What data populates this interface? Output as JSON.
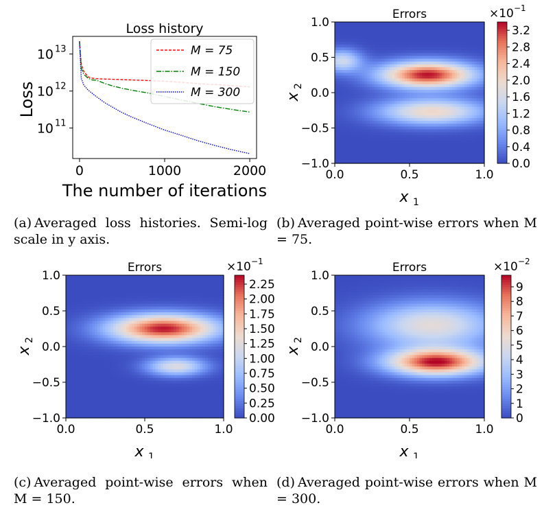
{
  "colors": {
    "series": [
      "#ff0000",
      "#008000",
      "#0000ff"
    ],
    "colormap": [
      "#3b4cc0",
      "#6889ee",
      "#9abbff",
      "#c9d7f0",
      "#eddbd0",
      "#f7b89c",
      "#e7745b",
      "#b40426"
    ]
  },
  "captions": [
    {
      "label": "(a)",
      "text": "Averaged loss histories. Semi-log scale in y axis."
    },
    {
      "label": "(b)",
      "text": "Averaged point-wise errors when M = 75."
    },
    {
      "label": "(c)",
      "text": "Averaged point-wise errors when M = 150."
    },
    {
      "label": "(d)",
      "text": "Averaged point-wise errors when M = 300."
    }
  ],
  "chart_data": [
    {
      "type": "line",
      "title": "Loss history",
      "xlabel": "The number of iterations",
      "ylabel": "Loss",
      "yscale": "log",
      "xlim": [
        -80,
        2080
      ],
      "ylim": [
        15000000000.0,
        30000000000000.0
      ],
      "xticks": [
        "0",
        "1000",
        "2000"
      ],
      "yticks": [
        "10",
        "10",
        "10"
      ],
      "yticks_exp": [
        "13",
        "12",
        "11"
      ],
      "legend_position": "top-right",
      "x": [
        0,
        20,
        50,
        100,
        150,
        200,
        300,
        400,
        500,
        600,
        800,
        1000,
        1200,
        1400,
        1600,
        1800,
        2000
      ],
      "series": [
        {
          "name": "M = 75",
          "legend": "M = 75",
          "style": "dashed",
          "values": [
            22000000000000.0,
            5500000000000.0,
            3600000000000.0,
            2600000000000.0,
            2400000000000.0,
            2300000000000.0,
            2200000000000.0,
            2100000000000.0,
            2000000000000.0,
            1900000000000.0,
            1800000000000.0,
            1700000000000.0,
            1600000000000.0,
            1500000000000.0,
            1450000000000.0,
            1400000000000.0,
            1350000000000.0
          ]
        },
        {
          "name": "M = 150",
          "legend": "M = 150",
          "style": "dashdot",
          "values": [
            22000000000000.0,
            4500000000000.0,
            3000000000000.0,
            2300000000000.0,
            2000000000000.0,
            1900000000000.0,
            1500000000000.0,
            1250000000000.0,
            1100000000000.0,
            1000000000000.0,
            850000000000.0,
            700000000000.0,
            580000000000.0,
            480000000000.0,
            400000000000.0,
            340000000000.0,
            290000000000.0
          ]
        },
        {
          "name": "M = 300",
          "legend": "M = 300",
          "style": "dotted",
          "values": [
            22000000000000.0,
            2200000000000.0,
            1400000000000.0,
            1000000000000.0,
            800000000000.0,
            650000000000.0,
            450000000000.0,
            340000000000.0,
            260000000000.0,
            210000000000.0,
            140000000000.0,
            95000000000.0,
            68000000000.0,
            48000000000.0,
            35000000000.0,
            26000000000.0,
            20000000000.0
          ]
        }
      ]
    },
    {
      "type": "heatmap",
      "title": "Errors",
      "xlabel": "x",
      "xlabel_sub": "1",
      "ylabel": "x",
      "ylabel_sub": "2",
      "xlim": [
        0,
        1
      ],
      "ylim": [
        -1,
        1
      ],
      "xticks": [
        "0.0",
        "0.5",
        "1.0"
      ],
      "yticks": [
        "1.0",
        "0.5",
        "0.0",
        "−0.5",
        "−1.0"
      ],
      "scale_label": "×10",
      "scale_exp": "−1",
      "vmin": 0,
      "vmax": 3.4,
      "colorbar_ticks": [
        "0.0",
        "0.4",
        "0.8",
        "1.2",
        "1.6",
        "2.0",
        "2.4",
        "2.8",
        "3.2"
      ],
      "colorbar_values": [
        0.0,
        0.4,
        0.8,
        1.2,
        1.6,
        2.0,
        2.4,
        2.8,
        3.2
      ],
      "blobs": [
        {
          "x": 0.62,
          "y": 0.25,
          "sx": 0.22,
          "sy": 0.13,
          "amp": 3.35
        },
        {
          "x": 0.05,
          "y": 0.45,
          "sx": 0.09,
          "sy": 0.11,
          "amp": 1.5
        },
        {
          "x": 0.65,
          "y": -0.27,
          "sx": 0.25,
          "sy": 0.13,
          "amp": 2.0
        }
      ]
    },
    {
      "type": "heatmap",
      "title": "Errors",
      "xlabel": "x",
      "xlabel_sub": "1",
      "ylabel": "x",
      "ylabel_sub": "2",
      "xlim": [
        0,
        1
      ],
      "ylim": [
        -1,
        1
      ],
      "xticks": [
        "0.0",
        "0.5",
        "1.0"
      ],
      "yticks": [
        "1.0",
        "0.5",
        "0.0",
        "−0.5",
        "−1.0"
      ],
      "scale_label": "×10",
      "scale_exp": "−1",
      "vmin": 0,
      "vmax": 2.4,
      "colorbar_ticks": [
        "0.00",
        "0.25",
        "0.50",
        "0.75",
        "1.00",
        "1.25",
        "1.50",
        "1.75",
        "2.00",
        "2.25"
      ],
      "colorbar_values": [
        0.0,
        0.25,
        0.5,
        0.75,
        1.0,
        1.25,
        1.5,
        1.75,
        2.0,
        2.25
      ],
      "blobs": [
        {
          "x": 0.62,
          "y": 0.25,
          "sx": 0.24,
          "sy": 0.14,
          "amp": 2.35
        },
        {
          "x": 0.7,
          "y": -0.28,
          "sx": 0.13,
          "sy": 0.09,
          "amp": 1.2
        }
      ]
    },
    {
      "type": "heatmap",
      "title": "Errors",
      "xlabel": "x",
      "xlabel_sub": "1",
      "ylabel": "x",
      "ylabel_sub": "2",
      "xlim": [
        0,
        1
      ],
      "ylim": [
        -1,
        1
      ],
      "xticks": [
        "0.0",
        "0.5",
        "1.0"
      ],
      "yticks": [
        "1.0",
        "0.5",
        "0.0",
        "−0.5",
        "−1.0"
      ],
      "scale_label": "×10",
      "scale_exp": "−2",
      "vmin": 0,
      "vmax": 9.8,
      "colorbar_ticks": [
        "0",
        "1",
        "2",
        "3",
        "4",
        "5",
        "6",
        "7",
        "8",
        "9"
      ],
      "colorbar_values": [
        0,
        1,
        2,
        3,
        4,
        5,
        6,
        7,
        8,
        9
      ],
      "blobs": [
        {
          "x": 0.68,
          "y": -0.22,
          "sx": 0.23,
          "sy": 0.13,
          "amp": 9.6
        },
        {
          "x": 0.65,
          "y": 0.3,
          "sx": 0.3,
          "sy": 0.22,
          "amp": 5.2
        }
      ]
    }
  ]
}
